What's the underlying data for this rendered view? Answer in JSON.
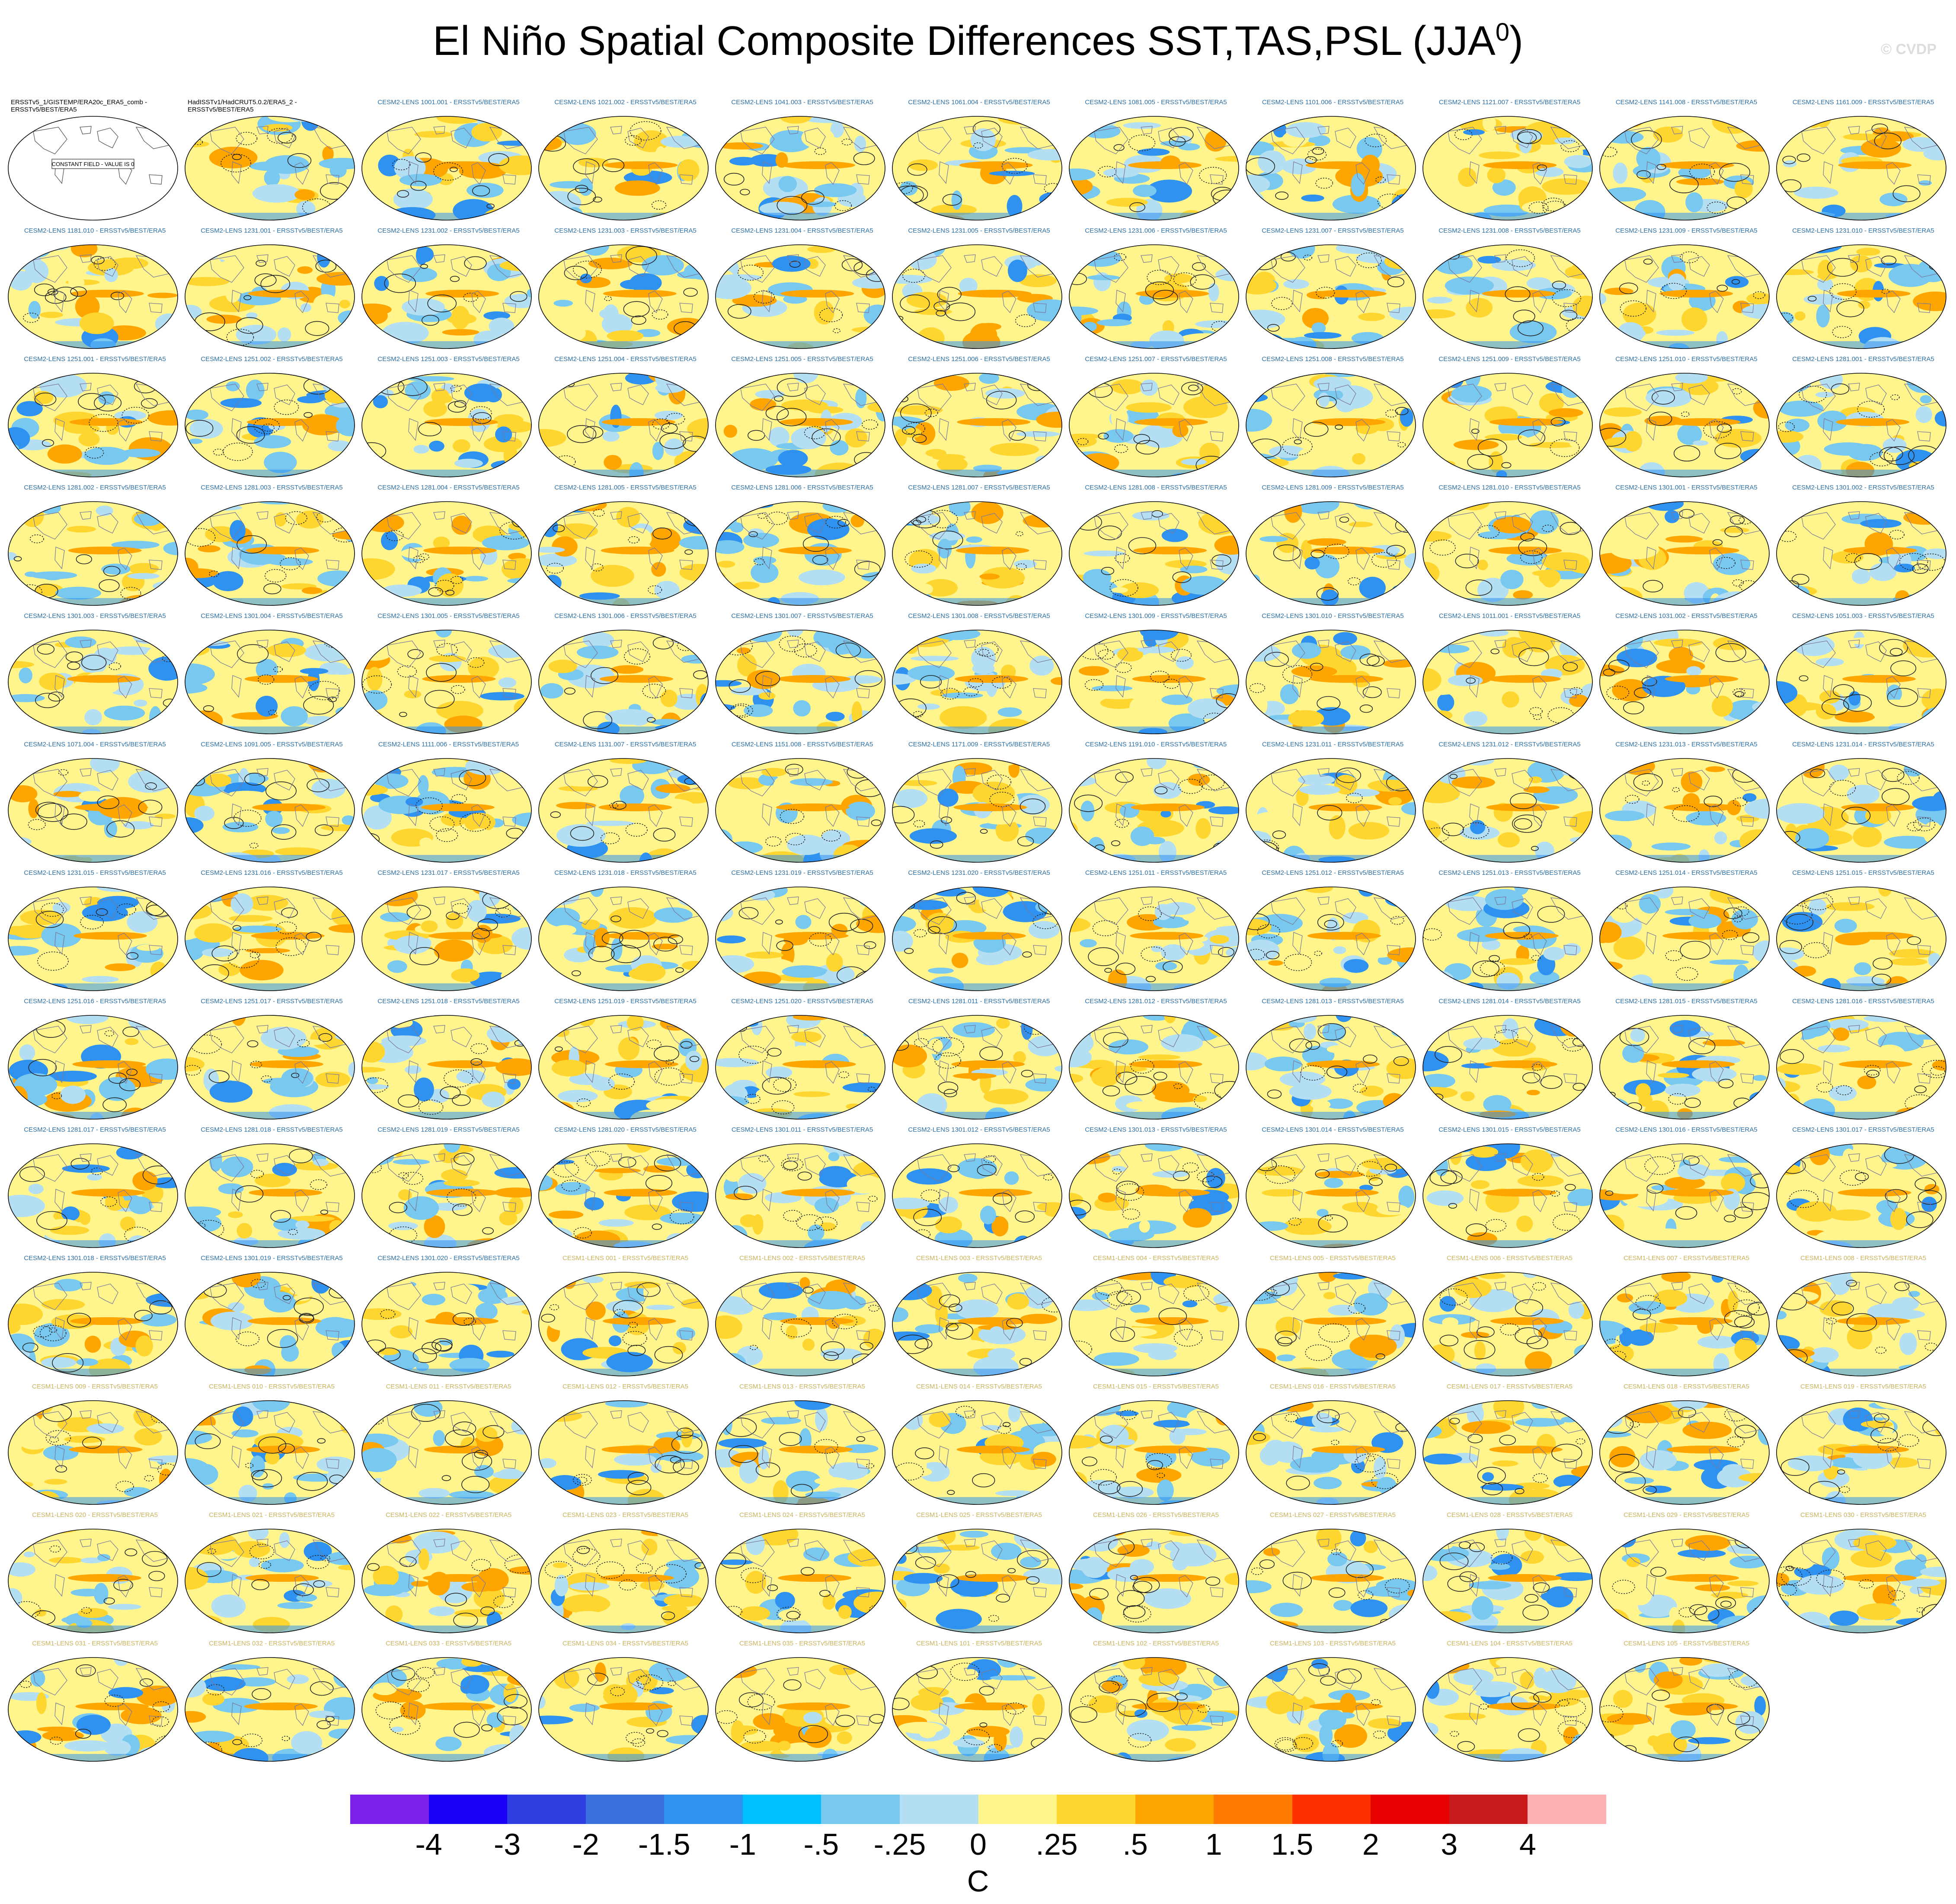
{
  "figure": {
    "title_main": "El Niño Spatial Composite Differences SST,TAS,PSL (JJA",
    "title_sup": "0",
    "title_end": ")",
    "watermark": "© CVDP"
  },
  "colors": {
    "land_reference": "#e6e6e6",
    "cesm2_label": "#2c6fa5",
    "cesm1_label": "#c9b25a",
    "ref_label": "#000000"
  },
  "panels": [
    {
      "label": "ERSSTv5_1/GISTEMP/ERA20c_ERA5_comb - ERSSTv5/BEST/ERA5",
      "note": "CONSTANT FIELD - VALUE IS 0",
      "group": "ref"
    },
    {
      "label": "HadISSTv1/HadCRUT5.0.2/ERA5_2 - ERSSTv5/BEST/ERA5",
      "group": "ref"
    },
    {
      "label": "CESM2-LENS 1001.001 - ERSSTv5/BEST/ERA5",
      "group": "cesm2"
    },
    {
      "label": "CESM2-LENS 1021.002 - ERSSTv5/BEST/ERA5",
      "group": "cesm2"
    },
    {
      "label": "CESM2-LENS 1041.003 - ERSSTv5/BEST/ERA5",
      "group": "cesm2"
    },
    {
      "label": "CESM2-LENS 1061.004 - ERSSTv5/BEST/ERA5",
      "group": "cesm2"
    },
    {
      "label": "CESM2-LENS 1081.005 - ERSSTv5/BEST/ERA5",
      "group": "cesm2"
    },
    {
      "label": "CESM2-LENS 1101.006 - ERSSTv5/BEST/ERA5",
      "group": "cesm2"
    },
    {
      "label": "CESM2-LENS 1121.007 - ERSSTv5/BEST/ERA5",
      "group": "cesm2"
    },
    {
      "label": "CESM2-LENS 1141.008 - ERSSTv5/BEST/ERA5",
      "group": "cesm2"
    },
    {
      "label": "CESM2-LENS 1161.009 - ERSSTv5/BEST/ERA5",
      "group": "cesm2"
    },
    {
      "label": "CESM2-LENS 1181.010 - ERSSTv5/BEST/ERA5",
      "group": "cesm2"
    },
    {
      "label": "CESM2-LENS 1231.001 - ERSSTv5/BEST/ERA5",
      "group": "cesm2"
    },
    {
      "label": "CESM2-LENS 1231.002 - ERSSTv5/BEST/ERA5",
      "group": "cesm2"
    },
    {
      "label": "CESM2-LENS 1231.003 - ERSSTv5/BEST/ERA5",
      "group": "cesm2"
    },
    {
      "label": "CESM2-LENS 1231.004 - ERSSTv5/BEST/ERA5",
      "group": "cesm2"
    },
    {
      "label": "CESM2-LENS 1231.005 - ERSSTv5/BEST/ERA5",
      "group": "cesm2"
    },
    {
      "label": "CESM2-LENS 1231.006 - ERSSTv5/BEST/ERA5",
      "group": "cesm2"
    },
    {
      "label": "CESM2-LENS 1231.007 - ERSSTv5/BEST/ERA5",
      "group": "cesm2"
    },
    {
      "label": "CESM2-LENS 1231.008 - ERSSTv5/BEST/ERA5",
      "group": "cesm2"
    },
    {
      "label": "CESM2-LENS 1231.009 - ERSSTv5/BEST/ERA5",
      "group": "cesm2"
    },
    {
      "label": "CESM2-LENS 1231.010 - ERSSTv5/BEST/ERA5",
      "group": "cesm2"
    },
    {
      "label": "CESM2-LENS 1251.001 - ERSSTv5/BEST/ERA5",
      "group": "cesm2"
    },
    {
      "label": "CESM2-LENS 1251.002 - ERSSTv5/BEST/ERA5",
      "group": "cesm2"
    },
    {
      "label": "CESM2-LENS 1251.003 - ERSSTv5/BEST/ERA5",
      "group": "cesm2"
    },
    {
      "label": "CESM2-LENS 1251.004 - ERSSTv5/BEST/ERA5",
      "group": "cesm2"
    },
    {
      "label": "CESM2-LENS 1251.005 - ERSSTv5/BEST/ERA5",
      "group": "cesm2"
    },
    {
      "label": "CESM2-LENS 1251.006 - ERSSTv5/BEST/ERA5",
      "group": "cesm2"
    },
    {
      "label": "CESM2-LENS 1251.007 - ERSSTv5/BEST/ERA5",
      "group": "cesm2"
    },
    {
      "label": "CESM2-LENS 1251.008 - ERSSTv5/BEST/ERA5",
      "group": "cesm2"
    },
    {
      "label": "CESM2-LENS 1251.009 - ERSSTv5/BEST/ERA5",
      "group": "cesm2"
    },
    {
      "label": "CESM2-LENS 1251.010 - ERSSTv5/BEST/ERA5",
      "group": "cesm2"
    },
    {
      "label": "CESM2-LENS 1281.001 - ERSSTv5/BEST/ERA5",
      "group": "cesm2"
    },
    {
      "label": "CESM2-LENS 1281.002 - ERSSTv5/BEST/ERA5",
      "group": "cesm2"
    },
    {
      "label": "CESM2-LENS 1281.003 - ERSSTv5/BEST/ERA5",
      "group": "cesm2"
    },
    {
      "label": "CESM2-LENS 1281.004 - ERSSTv5/BEST/ERA5",
      "group": "cesm2"
    },
    {
      "label": "CESM2-LENS 1281.005 - ERSSTv5/BEST/ERA5",
      "group": "cesm2"
    },
    {
      "label": "CESM2-LENS 1281.006 - ERSSTv5/BEST/ERA5",
      "group": "cesm2"
    },
    {
      "label": "CESM2-LENS 1281.007 - ERSSTv5/BEST/ERA5",
      "group": "cesm2"
    },
    {
      "label": "CESM2-LENS 1281.008 - ERSSTv5/BEST/ERA5",
      "group": "cesm2"
    },
    {
      "label": "CESM2-LENS 1281.009 - ERSSTv5/BEST/ERA5",
      "group": "cesm2"
    },
    {
      "label": "CESM2-LENS 1281.010 - ERSSTv5/BEST/ERA5",
      "group": "cesm2"
    },
    {
      "label": "CESM2-LENS 1301.001 - ERSSTv5/BEST/ERA5",
      "group": "cesm2"
    },
    {
      "label": "CESM2-LENS 1301.002 - ERSSTv5/BEST/ERA5",
      "group": "cesm2"
    },
    {
      "label": "CESM2-LENS 1301.003 - ERSSTv5/BEST/ERA5",
      "group": "cesm2"
    },
    {
      "label": "CESM2-LENS 1301.004 - ERSSTv5/BEST/ERA5",
      "group": "cesm2"
    },
    {
      "label": "CESM2-LENS 1301.005 - ERSSTv5/BEST/ERA5",
      "group": "cesm2"
    },
    {
      "label": "CESM2-LENS 1301.006 - ERSSTv5/BEST/ERA5",
      "group": "cesm2"
    },
    {
      "label": "CESM2-LENS 1301.007 - ERSSTv5/BEST/ERA5",
      "group": "cesm2"
    },
    {
      "label": "CESM2-LENS 1301.008 - ERSSTv5/BEST/ERA5",
      "group": "cesm2"
    },
    {
      "label": "CESM2-LENS 1301.009 - ERSSTv5/BEST/ERA5",
      "group": "cesm2"
    },
    {
      "label": "CESM2-LENS 1301.010 - ERSSTv5/BEST/ERA5",
      "group": "cesm2"
    },
    {
      "label": "CESM2-LENS 1011.001 - ERSSTv5/BEST/ERA5",
      "group": "cesm2"
    },
    {
      "label": "CESM2-LENS 1031.002 - ERSSTv5/BEST/ERA5",
      "group": "cesm2"
    },
    {
      "label": "CESM2-LENS 1051.003 - ERSSTv5/BEST/ERA5",
      "group": "cesm2"
    },
    {
      "label": "CESM2-LENS 1071.004 - ERSSTv5/BEST/ERA5",
      "group": "cesm2"
    },
    {
      "label": "CESM2-LENS 1091.005 - ERSSTv5/BEST/ERA5",
      "group": "cesm2"
    },
    {
      "label": "CESM2-LENS 1111.006 - ERSSTv5/BEST/ERA5",
      "group": "cesm2"
    },
    {
      "label": "CESM2-LENS 1131.007 - ERSSTv5/BEST/ERA5",
      "group": "cesm2"
    },
    {
      "label": "CESM2-LENS 1151.008 - ERSSTv5/BEST/ERA5",
      "group": "cesm2"
    },
    {
      "label": "CESM2-LENS 1171.009 - ERSSTv5/BEST/ERA5",
      "group": "cesm2"
    },
    {
      "label": "CESM2-LENS 1191.010 - ERSSTv5/BEST/ERA5",
      "group": "cesm2"
    },
    {
      "label": "CESM2-LENS 1231.011 - ERSSTv5/BEST/ERA5",
      "group": "cesm2"
    },
    {
      "label": "CESM2-LENS 1231.012 - ERSSTv5/BEST/ERA5",
      "group": "cesm2"
    },
    {
      "label": "CESM2-LENS 1231.013 - ERSSTv5/BEST/ERA5",
      "group": "cesm2"
    },
    {
      "label": "CESM2-LENS 1231.014 - ERSSTv5/BEST/ERA5",
      "group": "cesm2"
    },
    {
      "label": "CESM2-LENS 1231.015 - ERSSTv5/BEST/ERA5",
      "group": "cesm2"
    },
    {
      "label": "CESM2-LENS 1231.016 - ERSSTv5/BEST/ERA5",
      "group": "cesm2"
    },
    {
      "label": "CESM2-LENS 1231.017 - ERSSTv5/BEST/ERA5",
      "group": "cesm2"
    },
    {
      "label": "CESM2-LENS 1231.018 - ERSSTv5/BEST/ERA5",
      "group": "cesm2"
    },
    {
      "label": "CESM2-LENS 1231.019 - ERSSTv5/BEST/ERA5",
      "group": "cesm2"
    },
    {
      "label": "CESM2-LENS 1231.020 - ERSSTv5/BEST/ERA5",
      "group": "cesm2"
    },
    {
      "label": "CESM2-LENS 1251.011 - ERSSTv5/BEST/ERA5",
      "group": "cesm2"
    },
    {
      "label": "CESM2-LENS 1251.012 - ERSSTv5/BEST/ERA5",
      "group": "cesm2"
    },
    {
      "label": "CESM2-LENS 1251.013 - ERSSTv5/BEST/ERA5",
      "group": "cesm2"
    },
    {
      "label": "CESM2-LENS 1251.014 - ERSSTv5/BEST/ERA5",
      "group": "cesm2"
    },
    {
      "label": "CESM2-LENS 1251.015 - ERSSTv5/BEST/ERA5",
      "group": "cesm2"
    },
    {
      "label": "CESM2-LENS 1251.016 - ERSSTv5/BEST/ERA5",
      "group": "cesm2"
    },
    {
      "label": "CESM2-LENS 1251.017 - ERSSTv5/BEST/ERA5",
      "group": "cesm2"
    },
    {
      "label": "CESM2-LENS 1251.018 - ERSSTv5/BEST/ERA5",
      "group": "cesm2"
    },
    {
      "label": "CESM2-LENS 1251.019 - ERSSTv5/BEST/ERA5",
      "group": "cesm2"
    },
    {
      "label": "CESM2-LENS 1251.020 - ERSSTv5/BEST/ERA5",
      "group": "cesm2"
    },
    {
      "label": "CESM2-LENS 1281.011 - ERSSTv5/BEST/ERA5",
      "group": "cesm2"
    },
    {
      "label": "CESM2-LENS 1281.012 - ERSSTv5/BEST/ERA5",
      "group": "cesm2"
    },
    {
      "label": "CESM2-LENS 1281.013 - ERSSTv5/BEST/ERA5",
      "group": "cesm2"
    },
    {
      "label": "CESM2-LENS 1281.014 - ERSSTv5/BEST/ERA5",
      "group": "cesm2"
    },
    {
      "label": "CESM2-LENS 1281.015 - ERSSTv5/BEST/ERA5",
      "group": "cesm2"
    },
    {
      "label": "CESM2-LENS 1281.016 - ERSSTv5/BEST/ERA5",
      "group": "cesm2"
    },
    {
      "label": "CESM2-LENS 1281.017 - ERSSTv5/BEST/ERA5",
      "group": "cesm2"
    },
    {
      "label": "CESM2-LENS 1281.018 - ERSSTv5/BEST/ERA5",
      "group": "cesm2"
    },
    {
      "label": "CESM2-LENS 1281.019 - ERSSTv5/BEST/ERA5",
      "group": "cesm2"
    },
    {
      "label": "CESM2-LENS 1281.020 - ERSSTv5/BEST/ERA5",
      "group": "cesm2"
    },
    {
      "label": "CESM2-LENS 1301.011 - ERSSTv5/BEST/ERA5",
      "group": "cesm2"
    },
    {
      "label": "CESM2-LENS 1301.012 - ERSSTv5/BEST/ERA5",
      "group": "cesm2"
    },
    {
      "label": "CESM2-LENS 1301.013 - ERSSTv5/BEST/ERA5",
      "group": "cesm2"
    },
    {
      "label": "CESM2-LENS 1301.014 - ERSSTv5/BEST/ERA5",
      "group": "cesm2"
    },
    {
      "label": "CESM2-LENS 1301.015 - ERSSTv5/BEST/ERA5",
      "group": "cesm2"
    },
    {
      "label": "CESM2-LENS 1301.016 - ERSSTv5/BEST/ERA5",
      "group": "cesm2"
    },
    {
      "label": "CESM2-LENS 1301.017 - ERSSTv5/BEST/ERA5",
      "group": "cesm2"
    },
    {
      "label": "CESM2-LENS 1301.018 - ERSSTv5/BEST/ERA5",
      "group": "cesm2"
    },
    {
      "label": "CESM2-LENS 1301.019 - ERSSTv5/BEST/ERA5",
      "group": "cesm2"
    },
    {
      "label": "CESM2-LENS 1301.020 - ERSSTv5/BEST/ERA5",
      "group": "cesm2"
    },
    {
      "label": "CESM1-LENS 001 - ERSSTv5/BEST/ERA5",
      "group": "cesm1"
    },
    {
      "label": "CESM1-LENS 002 - ERSSTv5/BEST/ERA5",
      "group": "cesm1"
    },
    {
      "label": "CESM1-LENS 003 - ERSSTv5/BEST/ERA5",
      "group": "cesm1"
    },
    {
      "label": "CESM1-LENS 004 - ERSSTv5/BEST/ERA5",
      "group": "cesm1"
    },
    {
      "label": "CESM1-LENS 005 - ERSSTv5/BEST/ERA5",
      "group": "cesm1"
    },
    {
      "label": "CESM1-LENS 006 - ERSSTv5/BEST/ERA5",
      "group": "cesm1"
    },
    {
      "label": "CESM1-LENS 007 - ERSSTv5/BEST/ERA5",
      "group": "cesm1"
    },
    {
      "label": "CESM1-LENS 008 - ERSSTv5/BEST/ERA5",
      "group": "cesm1"
    },
    {
      "label": "CESM1-LENS 009 - ERSSTv5/BEST/ERA5",
      "group": "cesm1"
    },
    {
      "label": "CESM1-LENS 010 - ERSSTv5/BEST/ERA5",
      "group": "cesm1"
    },
    {
      "label": "CESM1-LENS 011 - ERSSTv5/BEST/ERA5",
      "group": "cesm1"
    },
    {
      "label": "CESM1-LENS 012 - ERSSTv5/BEST/ERA5",
      "group": "cesm1"
    },
    {
      "label": "CESM1-LENS 013 - ERSSTv5/BEST/ERA5",
      "group": "cesm1"
    },
    {
      "label": "CESM1-LENS 014 - ERSSTv5/BEST/ERA5",
      "group": "cesm1"
    },
    {
      "label": "CESM1-LENS 015 - ERSSTv5/BEST/ERA5",
      "group": "cesm1"
    },
    {
      "label": "CESM1-LENS 016 - ERSSTv5/BEST/ERA5",
      "group": "cesm1"
    },
    {
      "label": "CESM1-LENS 017 - ERSSTv5/BEST/ERA5",
      "group": "cesm1"
    },
    {
      "label": "CESM1-LENS 018 - ERSSTv5/BEST/ERA5",
      "group": "cesm1"
    },
    {
      "label": "CESM1-LENS 019 - ERSSTv5/BEST/ERA5",
      "group": "cesm1"
    },
    {
      "label": "CESM1-LENS 020 - ERSSTv5/BEST/ERA5",
      "group": "cesm1"
    },
    {
      "label": "CESM1-LENS 021 - ERSSTv5/BEST/ERA5",
      "group": "cesm1"
    },
    {
      "label": "CESM1-LENS 022 - ERSSTv5/BEST/ERA5",
      "group": "cesm1"
    },
    {
      "label": "CESM1-LENS 023 - ERSSTv5/BEST/ERA5",
      "group": "cesm1"
    },
    {
      "label": "CESM1-LENS 024 - ERSSTv5/BEST/ERA5",
      "group": "cesm1"
    },
    {
      "label": "CESM1-LENS 025 - ERSSTv5/BEST/ERA5",
      "group": "cesm1"
    },
    {
      "label": "CESM1-LENS 026 - ERSSTv5/BEST/ERA5",
      "group": "cesm1"
    },
    {
      "label": "CESM1-LENS 027 - ERSSTv5/BEST/ERA5",
      "group": "cesm1"
    },
    {
      "label": "CESM1-LENS 028 - ERSSTv5/BEST/ERA5",
      "group": "cesm1"
    },
    {
      "label": "CESM1-LENS 029 - ERSSTv5/BEST/ERA5",
      "group": "cesm1"
    },
    {
      "label": "CESM1-LENS 030 - ERSSTv5/BEST/ERA5",
      "group": "cesm1"
    },
    {
      "label": "CESM1-LENS 031 - ERSSTv5/BEST/ERA5",
      "group": "cesm1"
    },
    {
      "label": "CESM1-LENS 032 - ERSSTv5/BEST/ERA5",
      "group": "cesm1"
    },
    {
      "label": "CESM1-LENS 033 - ERSSTv5/BEST/ERA5",
      "group": "cesm1"
    },
    {
      "label": "CESM1-LENS 034 - ERSSTv5/BEST/ERA5",
      "group": "cesm1"
    },
    {
      "label": "CESM1-LENS 035 - ERSSTv5/BEST/ERA5",
      "group": "cesm1"
    },
    {
      "label": "CESM1-LENS 101 - ERSSTv5/BEST/ERA5",
      "group": "cesm1"
    },
    {
      "label": "CESM1-LENS 102 - ERSSTv5/BEST/ERA5",
      "group": "cesm1"
    },
    {
      "label": "CESM1-LENS 103 - ERSSTv5/BEST/ERA5",
      "group": "cesm1"
    },
    {
      "label": "CESM1-LENS 104 - ERSSTv5/BEST/ERA5",
      "group": "cesm1"
    },
    {
      "label": "CESM1-LENS 105 - ERSSTv5/BEST/ERA5",
      "group": "cesm1"
    }
  ],
  "colorbar": {
    "colors": [
      "#7b20e8",
      "#1a00f5",
      "#2e3ee0",
      "#3a6fe0",
      "#2f92f0",
      "#00bfff",
      "#78c8f0",
      "#b4def2",
      "#fff58c",
      "#ffd630",
      "#ffa500",
      "#ff7a00",
      "#ff3000",
      "#e60000",
      "#c81c1c",
      "#ffb0b0"
    ],
    "labels": [
      "-4",
      "-3",
      "-2",
      "-1.5",
      "-1",
      "-.5",
      "-.25",
      "0",
      ".25",
      ".5",
      "1",
      "1.5",
      "2",
      "3",
      "4"
    ],
    "units": "C"
  }
}
